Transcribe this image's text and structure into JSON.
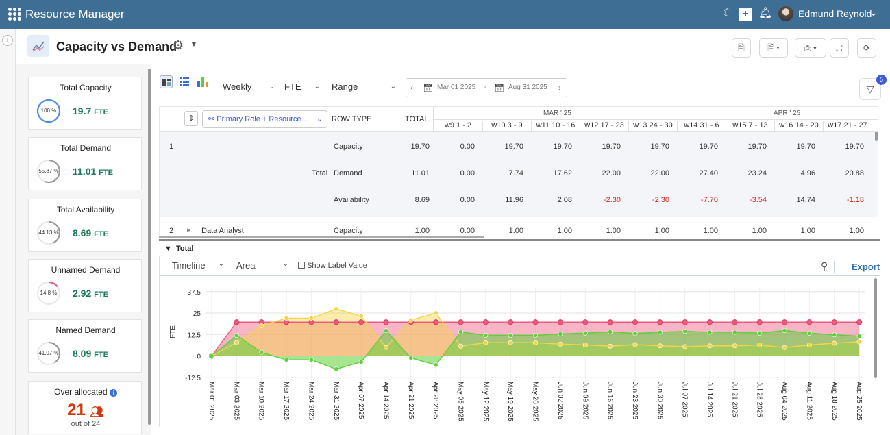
{
  "app": {
    "title": "Resource Manager",
    "user": "Edmund Reynold"
  },
  "page": {
    "title": "Capacity vs Demand"
  },
  "colors": {
    "topbar": "#3f6e95",
    "capacity": "#f05a7e",
    "demand": "#f5d447",
    "availability": "#5fcf3a",
    "accent": "#2f6fb0",
    "negative": "#d9261c"
  },
  "icons": {
    "apps": "grid-icon",
    "theme": "moon-icon",
    "add": "plus-icon",
    "notify": "bell-icon",
    "settings": "gear-icon"
  },
  "cards": [
    {
      "label": "Total Capacity",
      "pct": "100 %",
      "value": "19.7",
      "unit": "FTE",
      "fraction": 1.0,
      "color": "#4a90d9"
    },
    {
      "label": "Total Demand",
      "pct": "55.87 %",
      "value": "11.01",
      "unit": "FTE",
      "fraction": 0.5587,
      "color": "#999999"
    },
    {
      "label": "Total Availability",
      "pct": "44.13 %",
      "value": "8.69",
      "unit": "FTE",
      "fraction": 0.4413,
      "color": "#999999"
    },
    {
      "label": "Unnamed Demand",
      "pct": "14.8 %",
      "value": "2.92",
      "unit": "FTE",
      "fraction": 0.148,
      "color": "#e0608a"
    },
    {
      "label": "Named Demand",
      "pct": "41.07 %",
      "value": "8.09",
      "unit": "FTE",
      "fraction": 0.4107,
      "color": "#999999"
    }
  ],
  "over": {
    "label": "Over allocated",
    "value": "21",
    "out_of": "out of 24"
  },
  "toolbar": {
    "period": "Weekly",
    "unit": "FTE",
    "range": "Range",
    "date_from": "Mar 01 2025",
    "date_sep": "-",
    "date_to": "Aug 31 2025",
    "filter_count": "5"
  },
  "table": {
    "group_by": "Primary Role + Resource...",
    "headers": {
      "row_type": "ROW TYPE",
      "total": "TOTAL"
    },
    "months": [
      "MAR ' 25",
      "APR ' 25"
    ],
    "weeks": [
      "w9  1 - 2",
      "w10  3 - 9",
      "w11  10 - 16",
      "w12  17 - 23",
      "w13  24 - 30",
      "w14  31 - 6",
      "w15  7 - 13",
      "w16  14 - 20",
      "w17  21 - 27",
      "w"
    ],
    "row1": {
      "index": "1",
      "label": "Total",
      "capacity": {
        "type": "Capacity",
        "total": "19.70",
        "values": [
          "0.00",
          "19.70",
          "19.70",
          "19.70",
          "19.70",
          "19.70",
          "19.70",
          "19.70",
          "19.70"
        ]
      },
      "demand": {
        "type": "Demand",
        "total": "11.01",
        "values": [
          "0.00",
          "7.74",
          "17.62",
          "22.00",
          "22.00",
          "27.40",
          "23.24",
          "4.96",
          "20.88"
        ]
      },
      "availability": {
        "type": "Availability",
        "total": "8.69",
        "values": [
          "0.00",
          "11.96",
          "2.08",
          "-2.30",
          "-2.30",
          "-7.70",
          "-3.54",
          "14.74",
          "-1.18"
        ]
      }
    },
    "row2": {
      "index": "2",
      "label": "Data Analyst",
      "type": "Capacity",
      "total": "1.00",
      "values": [
        "0.00",
        "1.00",
        "1.00",
        "1.00",
        "1.00",
        "1.00",
        "1.00",
        "1.00",
        "1.00"
      ]
    }
  },
  "section": {
    "label": "Total"
  },
  "chart_controls": {
    "mode": "Timeline",
    "type": "Area",
    "show_label": "Show Label Value",
    "export": "Export"
  },
  "chart_data": {
    "type": "area",
    "ylabel": "FTE",
    "ylim": [
      -12.5,
      37.5
    ],
    "yticks": [
      "37.5",
      "25",
      "12.5",
      "0",
      "-12.5"
    ],
    "x": [
      "Mar 01 2025",
      "Mar 03 2025",
      "Mar 10 2025",
      "Mar 17 2025",
      "Mar 24 2025",
      "Mar 31 2025",
      "Apr 07 2025",
      "Apr 14 2025",
      "Apr 21 2025",
      "Apr 28 2025",
      "May 05 2025",
      "May 12 2025",
      "May 19 2025",
      "May 26 2025",
      "Jun 02 2025",
      "Jun 09 2025",
      "Jun 16 2025",
      "Jun 23 2025",
      "Jun 30 2025",
      "Jul 07 2025",
      "Jul 14 2025",
      "Jul 21 2025",
      "Jul 28 2025",
      "Aug 04 2025",
      "Aug 11 2025",
      "Aug 18 2025",
      "Aug 25 2025"
    ],
    "series": [
      {
        "key": "capacity",
        "values": [
          0,
          19.7,
          19.7,
          19.7,
          19.7,
          19.7,
          19.7,
          19.7,
          19.7,
          19.7,
          19.7,
          19.7,
          19.7,
          19.7,
          19.7,
          19.7,
          19.7,
          19.7,
          19.7,
          19.7,
          19.7,
          19.7,
          19.7,
          19.7,
          19.7,
          19.7,
          19.7
        ]
      },
      {
        "key": "demand",
        "values": [
          0,
          7.74,
          17.62,
          22.0,
          22.0,
          27.4,
          23.24,
          4.96,
          20.88,
          25.0,
          5.7,
          7.7,
          7.7,
          7.7,
          6.9,
          6.4,
          5.7,
          6.6,
          5.9,
          5.4,
          5.9,
          5.9,
          6.4,
          4.9,
          6.4,
          7.4,
          8.2
        ]
      },
      {
        "key": "availability",
        "values": [
          0,
          11.96,
          2.08,
          -2.3,
          -2.3,
          -7.7,
          -3.54,
          14.74,
          -1.18,
          -5.3,
          14.0,
          12.0,
          12.0,
          12.0,
          12.8,
          13.3,
          14.0,
          13.1,
          13.8,
          14.3,
          13.8,
          13.8,
          13.3,
          14.8,
          13.3,
          12.3,
          11.5
        ]
      }
    ]
  }
}
